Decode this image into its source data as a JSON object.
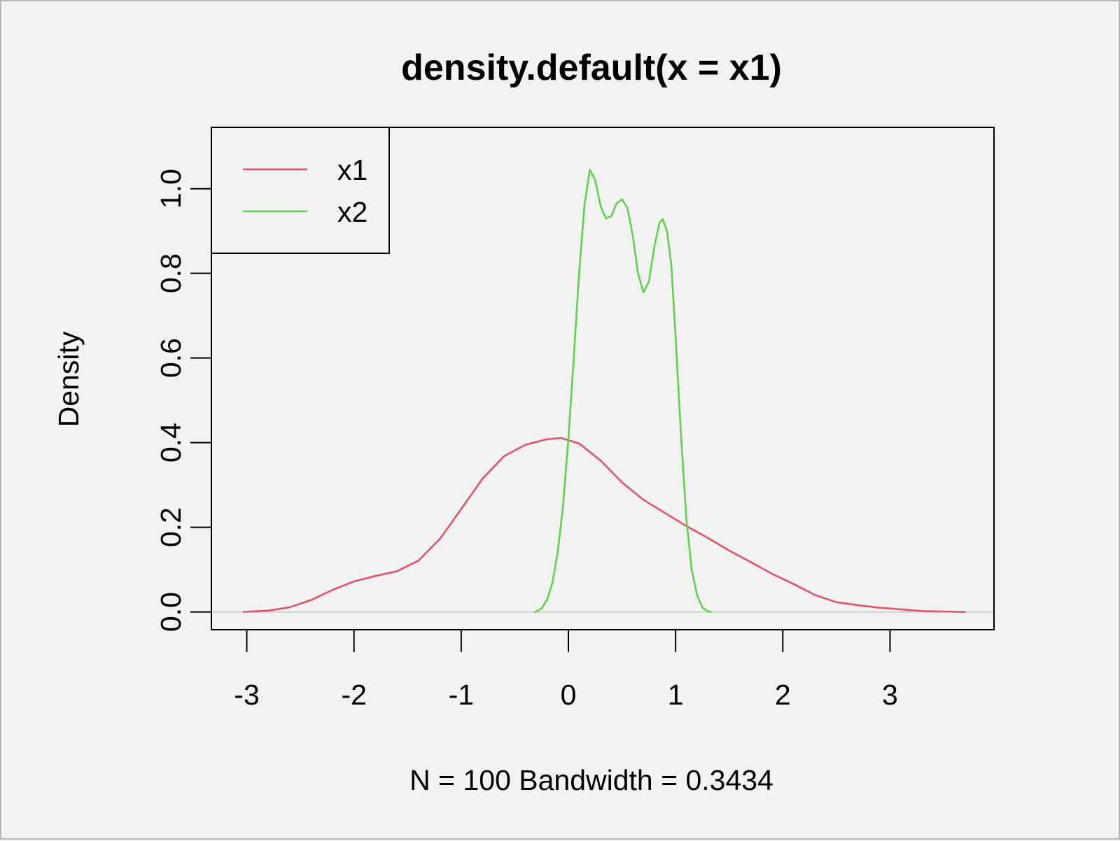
{
  "chart_data": {
    "type": "line",
    "title": "density.default(x = x1)",
    "xlabel": "N = 100   Bandwidth = 0.3434",
    "ylabel": "Density",
    "xlim": [
      -3.33,
      3.97
    ],
    "ylim": [
      -0.042,
      1.145
    ],
    "x_ticks": [
      {
        "value": -3,
        "label": "-3"
      },
      {
        "value": -2,
        "label": "-2"
      },
      {
        "value": -1,
        "label": "-1"
      },
      {
        "value": 0,
        "label": "0"
      },
      {
        "value": 1,
        "label": "1"
      },
      {
        "value": 2,
        "label": "2"
      },
      {
        "value": 3,
        "label": "3"
      }
    ],
    "y_ticks": [
      {
        "value": 0.0,
        "label": "0.0"
      },
      {
        "value": 0.2,
        "label": "0.2"
      },
      {
        "value": 0.4,
        "label": "0.4"
      },
      {
        "value": 0.6,
        "label": "0.6"
      },
      {
        "value": 0.8,
        "label": "0.8"
      },
      {
        "value": 1.0,
        "label": "1.0"
      }
    ],
    "baseline": 0,
    "legend_position": "top-left",
    "grid": false,
    "series": [
      {
        "name": "x1",
        "color": "#df536b",
        "points": [
          [
            -3.03,
            0.0
          ],
          [
            -2.8,
            0.003
          ],
          [
            -2.6,
            0.011
          ],
          [
            -2.4,
            0.028
          ],
          [
            -2.2,
            0.052
          ],
          [
            -2.0,
            0.072
          ],
          [
            -1.8,
            0.085
          ],
          [
            -1.6,
            0.096
          ],
          [
            -1.4,
            0.121
          ],
          [
            -1.2,
            0.172
          ],
          [
            -1.0,
            0.243
          ],
          [
            -0.8,
            0.315
          ],
          [
            -0.6,
            0.368
          ],
          [
            -0.4,
            0.395
          ],
          [
            -0.2,
            0.408
          ],
          [
            -0.07,
            0.411
          ],
          [
            0.1,
            0.398
          ],
          [
            0.3,
            0.358
          ],
          [
            0.5,
            0.306
          ],
          [
            0.7,
            0.265
          ],
          [
            0.9,
            0.234
          ],
          [
            1.1,
            0.203
          ],
          [
            1.3,
            0.175
          ],
          [
            1.5,
            0.145
          ],
          [
            1.7,
            0.118
          ],
          [
            1.9,
            0.09
          ],
          [
            2.1,
            0.066
          ],
          [
            2.3,
            0.04
          ],
          [
            2.5,
            0.023
          ],
          [
            2.7,
            0.016
          ],
          [
            2.9,
            0.01
          ],
          [
            3.1,
            0.006
          ],
          [
            3.3,
            0.002
          ],
          [
            3.5,
            0.001
          ],
          [
            3.7,
            0.0
          ]
        ]
      },
      {
        "name": "x2",
        "color": "#61d04f",
        "points": [
          [
            -0.31,
            0.0
          ],
          [
            -0.25,
            0.008
          ],
          [
            -0.2,
            0.028
          ],
          [
            -0.15,
            0.068
          ],
          [
            -0.1,
            0.14
          ],
          [
            -0.05,
            0.25
          ],
          [
            0.0,
            0.41
          ],
          [
            0.05,
            0.6
          ],
          [
            0.1,
            0.8
          ],
          [
            0.15,
            0.96
          ],
          [
            0.2,
            1.045
          ],
          [
            0.25,
            1.02
          ],
          [
            0.3,
            0.96
          ],
          [
            0.35,
            0.93
          ],
          [
            0.4,
            0.935
          ],
          [
            0.45,
            0.965
          ],
          [
            0.5,
            0.975
          ],
          [
            0.55,
            0.955
          ],
          [
            0.6,
            0.89
          ],
          [
            0.65,
            0.8
          ],
          [
            0.7,
            0.755
          ],
          [
            0.75,
            0.78
          ],
          [
            0.8,
            0.86
          ],
          [
            0.85,
            0.92
          ],
          [
            0.88,
            0.928
          ],
          [
            0.92,
            0.9
          ],
          [
            0.96,
            0.82
          ],
          [
            1.0,
            0.65
          ],
          [
            1.05,
            0.42
          ],
          [
            1.1,
            0.22
          ],
          [
            1.15,
            0.1
          ],
          [
            1.2,
            0.04
          ],
          [
            1.25,
            0.01
          ],
          [
            1.3,
            0.002
          ],
          [
            1.33,
            0.0
          ]
        ]
      }
    ]
  }
}
